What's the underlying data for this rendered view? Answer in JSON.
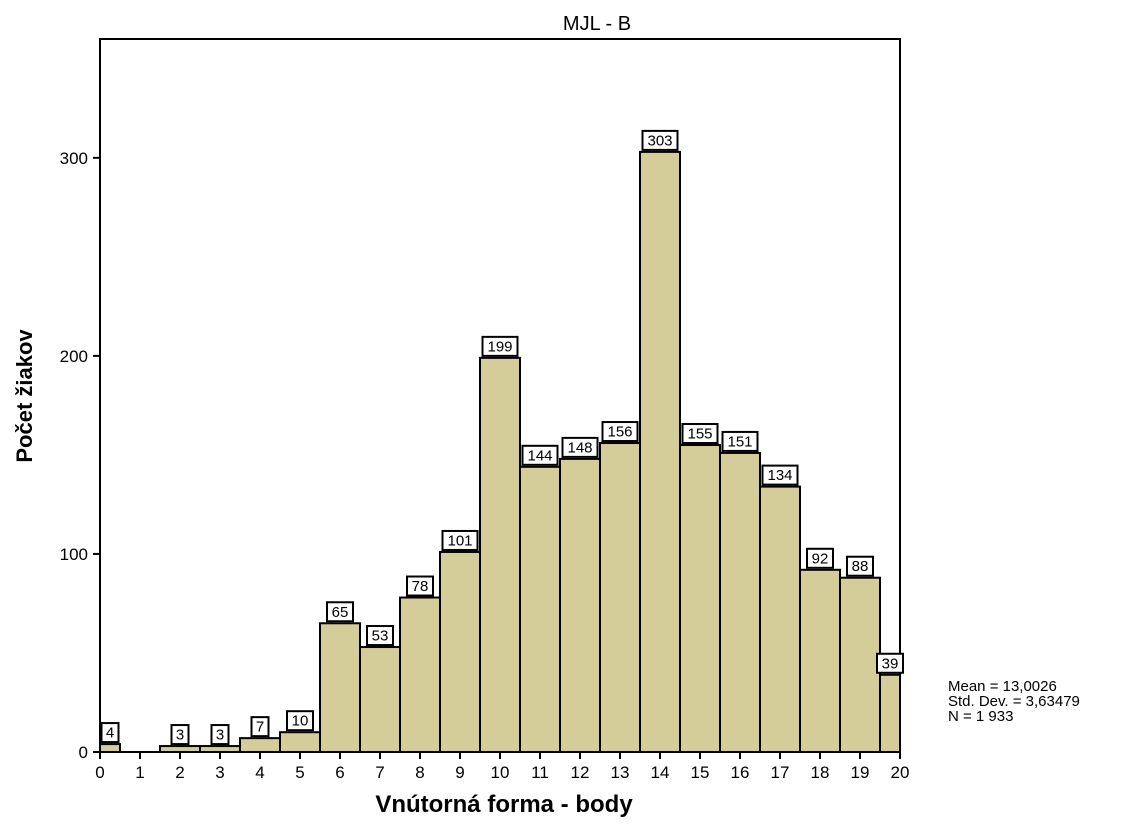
{
  "chart_data": {
    "type": "bar",
    "title": "MJL - B",
    "xlabel": "Vnútorná forma - body",
    "ylabel": "Počet žiakov",
    "xlim": [
      0,
      20
    ],
    "ylim": [
      0,
      360
    ],
    "xticks": [
      0,
      1,
      2,
      3,
      4,
      5,
      6,
      7,
      8,
      9,
      10,
      11,
      12,
      13,
      14,
      15,
      16,
      17,
      18,
      19,
      20
    ],
    "yticks": [
      0,
      100,
      200,
      300
    ],
    "bins": [
      {
        "from": 0,
        "to": 0.5,
        "value": 4
      },
      {
        "from": 1.5,
        "to": 2.5,
        "value": 3
      },
      {
        "from": 2.5,
        "to": 3.5,
        "value": 3
      },
      {
        "from": 3.5,
        "to": 4.5,
        "value": 7
      },
      {
        "from": 4.5,
        "to": 5.5,
        "value": 10
      },
      {
        "from": 5.5,
        "to": 6.5,
        "value": 65
      },
      {
        "from": 6.5,
        "to": 7.5,
        "value": 53
      },
      {
        "from": 7.5,
        "to": 8.5,
        "value": 78
      },
      {
        "from": 8.5,
        "to": 9.5,
        "value": 101
      },
      {
        "from": 9.5,
        "to": 10.5,
        "value": 199
      },
      {
        "from": 10.5,
        "to": 11.5,
        "value": 144
      },
      {
        "from": 11.5,
        "to": 12.5,
        "value": 148
      },
      {
        "from": 12.5,
        "to": 13.5,
        "value": 156
      },
      {
        "from": 13.5,
        "to": 14.5,
        "value": 303
      },
      {
        "from": 14.5,
        "to": 15.5,
        "value": 155
      },
      {
        "from": 15.5,
        "to": 16.5,
        "value": 151
      },
      {
        "from": 16.5,
        "to": 17.5,
        "value": 134
      },
      {
        "from": 17.5,
        "to": 18.5,
        "value": 92
      },
      {
        "from": 18.5,
        "to": 19.5,
        "value": 88
      },
      {
        "from": 19.5,
        "to": 20,
        "value": 39
      }
    ],
    "bar_color": "#d4cc99",
    "grid": false,
    "stats": {
      "mean": "Mean = 13,0026",
      "std": "Std. Dev. = 3,63479",
      "n": "N = 1 933"
    }
  }
}
